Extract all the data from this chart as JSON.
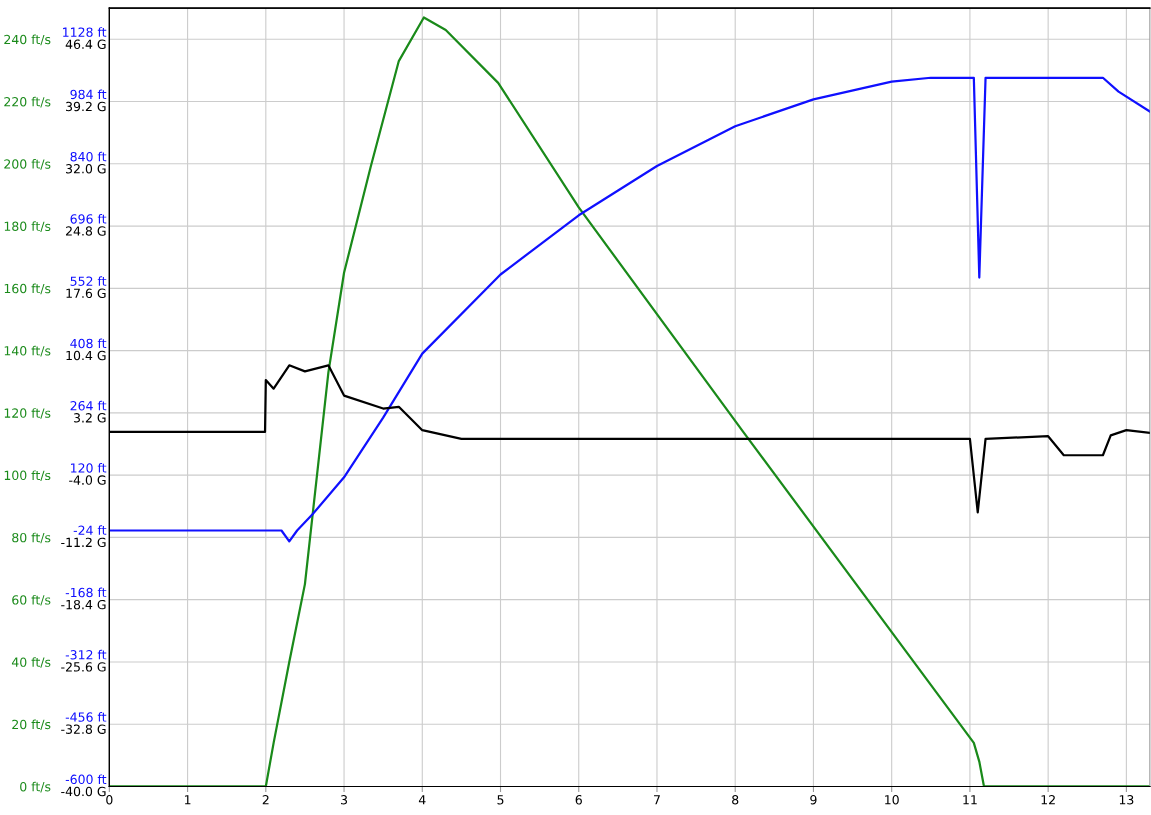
{
  "chart_data": {
    "type": "line",
    "grid": true,
    "legend": false,
    "marker": "none",
    "line_style": "solid",
    "xlim": [
      0,
      13.3
    ],
    "xticks": [
      0,
      1,
      2,
      3,
      4,
      5,
      6,
      7,
      8,
      9,
      10,
      11,
      12,
      13
    ],
    "ylim": [
      0,
      250
    ],
    "yticks": [
      {
        "value": 0,
        "label": "0 ft/s"
      },
      {
        "value": 20,
        "label": "20 ft/s"
      },
      {
        "value": 40,
        "label": "40 ft/s"
      },
      {
        "value": 60,
        "label": "60 ft/s"
      },
      {
        "value": 80,
        "label": "80 ft/s"
      },
      {
        "value": 100,
        "label": "100 ft/s"
      },
      {
        "value": 120,
        "label": "120 ft/s"
      },
      {
        "value": 140,
        "label": "140 ft/s"
      },
      {
        "value": 160,
        "label": "160 ft/s"
      },
      {
        "value": 180,
        "label": "180 ft/s"
      },
      {
        "value": 200,
        "label": "200 ft/s"
      },
      {
        "value": 220,
        "label": "220 ft/s"
      },
      {
        "value": 240,
        "label": "240 ft/s"
      }
    ],
    "y2lim": [
      -600,
      1200
    ],
    "y2ticks": [
      {
        "value": -600,
        "label": "-600 ft"
      },
      {
        "value": -456,
        "label": "-456 ft"
      },
      {
        "value": -312,
        "label": "-312 ft"
      },
      {
        "value": -168,
        "label": "-168 ft"
      },
      {
        "value": -24,
        "label": "-24 ft"
      },
      {
        "value": 120,
        "label": "120 ft"
      },
      {
        "value": 264,
        "label": "264 ft"
      },
      {
        "value": 408,
        "label": "408 ft"
      },
      {
        "value": 552,
        "label": "552 ft"
      },
      {
        "value": 696,
        "label": "696 ft"
      },
      {
        "value": 840,
        "label": "840 ft"
      },
      {
        "value": 984,
        "label": "984 ft"
      },
      {
        "value": 1128,
        "label": "1128 ft"
      }
    ],
    "y3lim": [
      -40,
      50
    ],
    "y3ticks": [
      {
        "value": -40,
        "label": "-40.0 G"
      },
      {
        "value": -32.8,
        "label": "-32.8 G"
      },
      {
        "value": -25.6,
        "label": "-25.6 G"
      },
      {
        "value": -18.4,
        "label": "-18.4 G"
      },
      {
        "value": -11.2,
        "label": "-11.2 G"
      },
      {
        "value": -4,
        "label": "-4.0 G"
      },
      {
        "value": 3.2,
        "label": "3.2 G"
      },
      {
        "value": 10.4,
        "label": "10.4 G"
      },
      {
        "value": 17.6,
        "label": "17.6 G"
      },
      {
        "value": 24.8,
        "label": "24.8 G"
      },
      {
        "value": 32,
        "label": "32.0 G"
      },
      {
        "value": 39.2,
        "label": "39.2 G"
      },
      {
        "value": 46.4,
        "label": "46.4 G"
      }
    ],
    "series": [
      {
        "color": "#1a8a1a",
        "axis": "y",
        "x": [
          0,
          2.0,
          2.1,
          2.3,
          2.5,
          2.8,
          3.0,
          3.34,
          3.7,
          4.02,
          4.3,
          4.97,
          6.0,
          8.1,
          11.05,
          11.12,
          11.18,
          13.3
        ],
        "values": [
          0,
          0,
          14,
          40,
          65,
          133,
          165,
          199,
          233,
          247,
          243,
          226,
          186,
          114,
          14,
          8,
          0,
          0
        ]
      },
      {
        "color": "#1010ff",
        "axis": "y2",
        "x": [
          0,
          2.2,
          2.3,
          2.4,
          2.6,
          3.0,
          3.5,
          4.0,
          5.0,
          6.0,
          7.0,
          8.0,
          9.0,
          10.0,
          10.5,
          11.05,
          11.12,
          11.2,
          12.7,
          12.9,
          13.3
        ],
        "values": [
          -8,
          -8,
          -33,
          -8,
          30,
          115,
          253,
          401,
          584,
          721,
          835,
          927,
          989,
          1030,
          1039,
          1039,
          577,
          1039,
          1039,
          1007,
          961
        ]
      },
      {
        "color": "#000000",
        "axis": "y3",
        "x": [
          0,
          1.99,
          2.0,
          2.1,
          2.3,
          2.5,
          2.8,
          3.0,
          3.5,
          3.7,
          4.0,
          4.5,
          11.0,
          11.1,
          11.2,
          12.0,
          12.2,
          12.7,
          12.8,
          13.0,
          13.3
        ],
        "values": [
          1,
          1,
          7,
          6,
          8.7,
          8,
          8.7,
          5.2,
          3.7,
          3.9,
          1.2,
          0.2,
          0.2,
          -8.3,
          0.2,
          0.5,
          -1.7,
          -1.7,
          0.6,
          1.2,
          0.9
        ]
      }
    ]
  }
}
